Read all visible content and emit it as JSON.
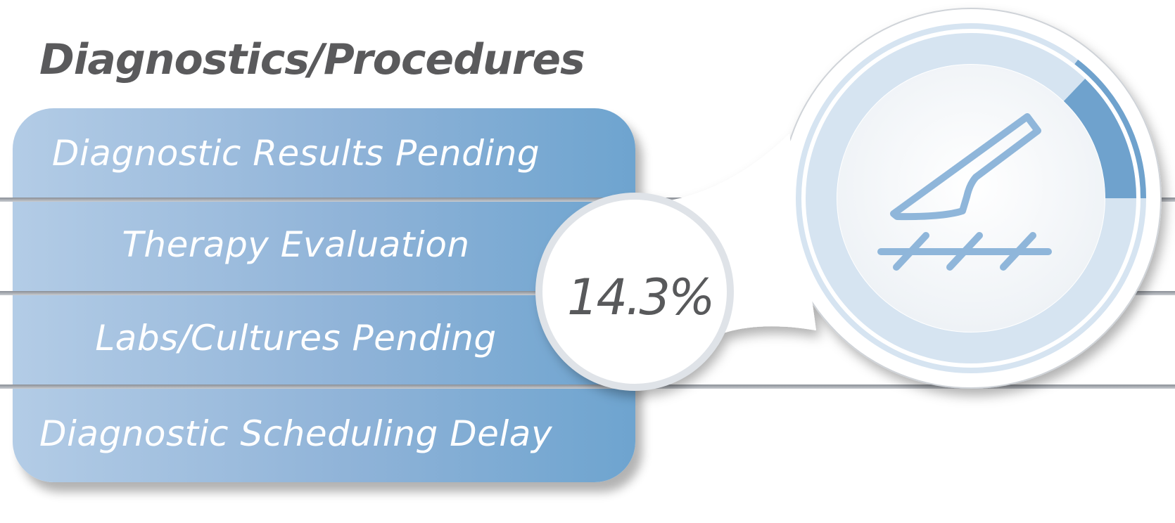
{
  "title": "Diagnostics/Procedures",
  "categories": [
    {
      "label": "Diagnostic Results Pending"
    },
    {
      "label": "Therapy Evaluation"
    },
    {
      "label": "Labs/Cultures Pending"
    },
    {
      "label": "Diagnostic Scheduling Delay"
    }
  ],
  "stat": {
    "value_text": "14.3%",
    "value": 14.3
  },
  "icon": "scalpel-icon",
  "colors": {
    "bar_light": "#b3cce6",
    "bar_dark": "#6ea4cf",
    "ring_light": "#d6e4f1",
    "ring_fill": "#6fa2cd",
    "text_gray": "#5a5a5c"
  }
}
